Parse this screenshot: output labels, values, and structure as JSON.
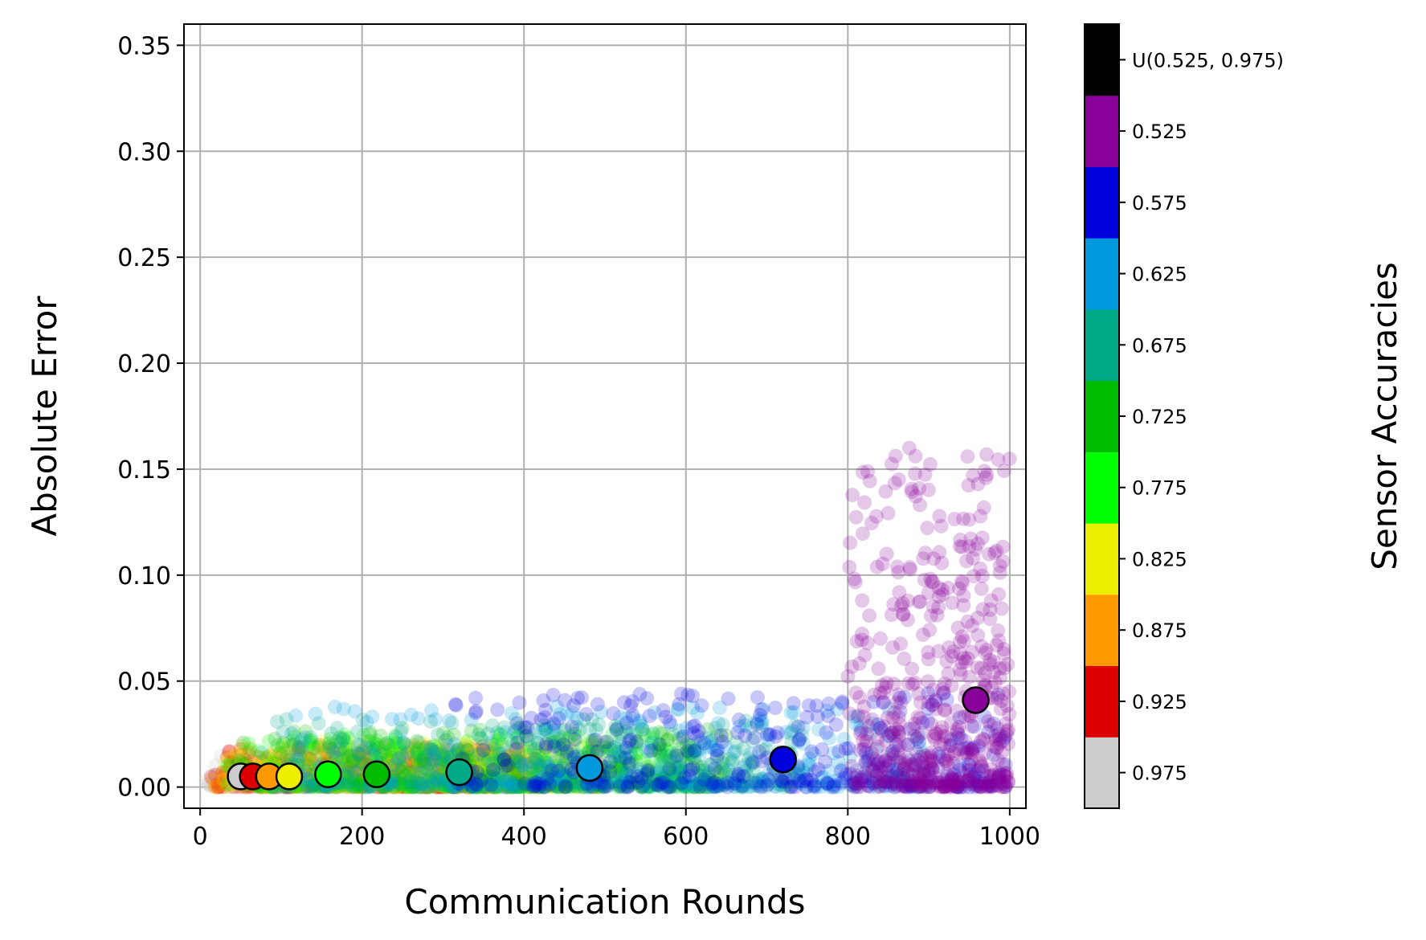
{
  "chart_data": {
    "type": "scatter",
    "xlabel": "Communication Rounds",
    "ylabel": "Absolute Error",
    "xlim": [
      -20,
      1020
    ],
    "ylim": [
      -0.01,
      0.36
    ],
    "xticks": [
      0,
      200,
      400,
      600,
      800,
      1000
    ],
    "yticks": [
      0.0,
      0.05,
      0.1,
      0.15,
      0.2,
      0.25,
      0.3,
      0.35
    ],
    "ytick_labels": [
      "0.00",
      "0.05",
      "0.10",
      "0.15",
      "0.20",
      "0.25",
      "0.30",
      "0.35"
    ],
    "grid": true,
    "colorbar": {
      "label": "Sensor Accuracies",
      "categories": [
        {
          "label": "0.975",
          "color": "#cccccc"
        },
        {
          "label": "0.925",
          "color": "#dd0000"
        },
        {
          "label": "0.875",
          "color": "#ff9900"
        },
        {
          "label": "0.825",
          "color": "#eeee00"
        },
        {
          "label": "0.775",
          "color": "#00ff00"
        },
        {
          "label": "0.725",
          "color": "#00bb00"
        },
        {
          "label": "0.675",
          "color": "#00aa88"
        },
        {
          "label": "0.625",
          "color": "#0099dd"
        },
        {
          "label": "0.575",
          "color": "#0000dd"
        },
        {
          "label": "0.525",
          "color": "#880099"
        },
        {
          "label": "U(0.525, 0.975)",
          "color": "#000000"
        }
      ]
    },
    "series": [
      {
        "accuracy": "0.975",
        "color": "#cccccc",
        "x_range": [
          5,
          260
        ],
        "y_max": 0.015,
        "mean": [
          50,
          0.005
        ]
      },
      {
        "accuracy": "0.925",
        "color": "#dd0000",
        "x_range": [
          10,
          400
        ],
        "y_max": 0.02,
        "mean": [
          65,
          0.005
        ]
      },
      {
        "accuracy": "0.875",
        "color": "#ff9900",
        "x_range": [
          15,
          420
        ],
        "y_max": 0.02,
        "mean": [
          85,
          0.005
        ]
      },
      {
        "accuracy": "0.825",
        "color": "#eeee00",
        "x_range": [
          20,
          500
        ],
        "y_max": 0.022,
        "mean": [
          110,
          0.005
        ]
      },
      {
        "accuracy": "0.775",
        "color": "#00ff00",
        "x_range": [
          30,
          600
        ],
        "y_max": 0.025,
        "mean": [
          158,
          0.006
        ]
      },
      {
        "accuracy": "0.725",
        "color": "#00bb00",
        "x_range": [
          40,
          650
        ],
        "y_max": 0.028,
        "mean": [
          218,
          0.006
        ]
      },
      {
        "accuracy": "0.675",
        "color": "#00aa88",
        "x_range": [
          60,
          750
        ],
        "y_max": 0.032,
        "mean": [
          320,
          0.007
        ]
      },
      {
        "accuracy": "0.625",
        "color": "#0099dd",
        "x_range": [
          100,
          900
        ],
        "y_max": 0.038,
        "mean": [
          481,
          0.009
        ]
      },
      {
        "accuracy": "0.575",
        "color": "#0000dd",
        "x_range": [
          300,
          1000
        ],
        "y_max": 0.045,
        "mean": [
          720,
          0.013
        ]
      },
      {
        "accuracy": "0.525",
        "color": "#880099",
        "x_range": [
          800,
          1000
        ],
        "y_max": 0.16,
        "mean": [
          958,
          0.041
        ]
      }
    ]
  }
}
